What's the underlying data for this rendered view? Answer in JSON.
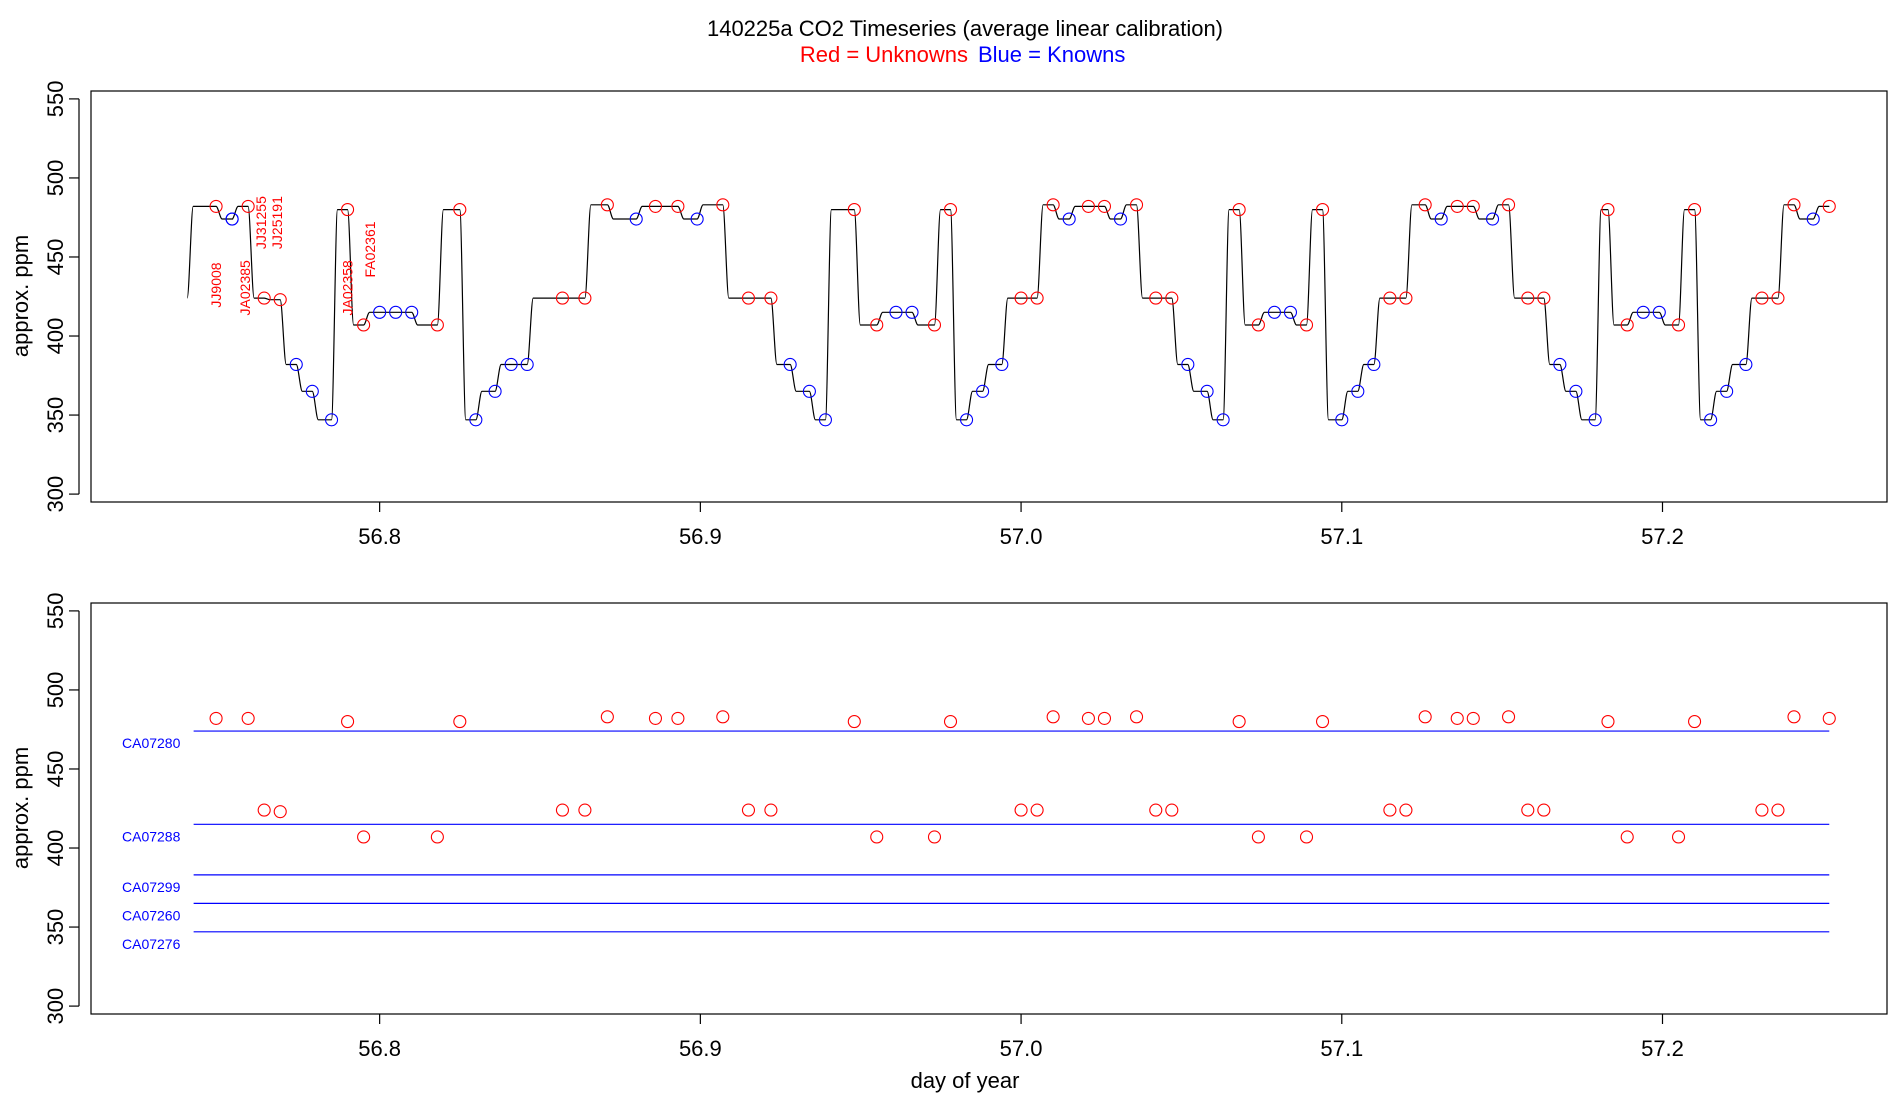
{
  "figure": {
    "title": "140225a   CO2 Timeseries (average linear calibration)",
    "legend_red": "Red = Unknowns",
    "legend_blue": "Blue = Knowns",
    "xlabel": "day of year",
    "colors": {
      "unknown": "#ff0000",
      "known": "#0000ff",
      "trace": "#000000",
      "frame": "#000000"
    }
  },
  "chart_data": [
    {
      "type": "line",
      "panel": "top",
      "ylabel": "approx. ppm",
      "xlim": [
        56.71,
        57.27
      ],
      "ylim": [
        295,
        555
      ],
      "x_ticks": [
        "56.8",
        "56.9",
        "57.0",
        "57.1",
        "57.2"
      ],
      "y_ticks": [
        "300",
        "350",
        "400",
        "450",
        "500",
        "550"
      ],
      "grid": false,
      "series": [
        {
          "name": "Unknowns",
          "color": "#ff0000",
          "points": [
            [
              56.749,
              482
            ],
            [
              56.759,
              482
            ],
            [
              56.764,
              424
            ],
            [
              56.769,
              423
            ],
            [
              56.79,
              480
            ],
            [
              56.795,
              407
            ],
            [
              56.818,
              407
            ],
            [
              56.825,
              480
            ],
            [
              56.857,
              424
            ],
            [
              56.864,
              424
            ],
            [
              56.871,
              483
            ],
            [
              56.886,
              482
            ],
            [
              56.893,
              482
            ],
            [
              56.907,
              483
            ],
            [
              56.915,
              424
            ],
            [
              56.922,
              424
            ],
            [
              56.948,
              480
            ],
            [
              56.955,
              407
            ],
            [
              56.973,
              407
            ],
            [
              56.978,
              480
            ],
            [
              57.0,
              424
            ],
            [
              57.005,
              424
            ],
            [
              57.01,
              483
            ],
            [
              57.021,
              482
            ],
            [
              57.026,
              482
            ],
            [
              57.036,
              483
            ],
            [
              57.042,
              424
            ],
            [
              57.047,
              424
            ],
            [
              57.068,
              480
            ],
            [
              57.074,
              407
            ],
            [
              57.089,
              407
            ],
            [
              57.094,
              480
            ],
            [
              57.115,
              424
            ],
            [
              57.12,
              424
            ],
            [
              57.126,
              483
            ],
            [
              57.136,
              482
            ],
            [
              57.141,
              482
            ],
            [
              57.152,
              483
            ],
            [
              57.158,
              424
            ],
            [
              57.163,
              424
            ],
            [
              57.183,
              480
            ],
            [
              57.189,
              407
            ],
            [
              57.205,
              407
            ],
            [
              57.21,
              480
            ],
            [
              57.231,
              424
            ],
            [
              57.236,
              424
            ],
            [
              57.241,
              483
            ],
            [
              57.252,
              482
            ]
          ]
        },
        {
          "name": "Knowns",
          "color": "#0000ff",
          "points": [
            [
              56.754,
              474
            ],
            [
              56.754,
              474
            ],
            [
              56.774,
              382
            ],
            [
              56.779,
              365
            ],
            [
              56.785,
              347
            ],
            [
              56.8,
              415
            ],
            [
              56.805,
              415
            ],
            [
              56.81,
              415
            ],
            [
              56.83,
              347
            ],
            [
              56.836,
              365
            ],
            [
              56.841,
              382
            ],
            [
              56.846,
              382
            ],
            [
              56.88,
              474
            ],
            [
              56.899,
              474
            ],
            [
              56.928,
              382
            ],
            [
              56.934,
              365
            ],
            [
              56.939,
              347
            ],
            [
              56.961,
              415
            ],
            [
              56.966,
              415
            ],
            [
              56.983,
              347
            ],
            [
              56.988,
              365
            ],
            [
              56.994,
              382
            ],
            [
              57.015,
              474
            ],
            [
              57.031,
              474
            ],
            [
              57.052,
              382
            ],
            [
              57.058,
              365
            ],
            [
              57.063,
              347
            ],
            [
              57.079,
              415
            ],
            [
              57.084,
              415
            ],
            [
              57.1,
              347
            ],
            [
              57.105,
              365
            ],
            [
              57.11,
              382
            ],
            [
              57.131,
              474
            ],
            [
              57.147,
              474
            ],
            [
              57.168,
              382
            ],
            [
              57.173,
              365
            ],
            [
              57.179,
              347
            ],
            [
              57.194,
              415
            ],
            [
              57.199,
              415
            ],
            [
              57.215,
              347
            ],
            [
              57.22,
              365
            ],
            [
              57.226,
              382
            ],
            [
              57.247,
              474
            ]
          ]
        }
      ],
      "trace_start": [
        56.74,
        424
      ],
      "annotations": [
        {
          "text": "JJ9008",
          "x": 56.749,
          "y": 418
        },
        {
          "text": "JA02385",
          "x": 56.758,
          "y": 413
        },
        {
          "text": "JJ31255",
          "x": 56.763,
          "y": 455
        },
        {
          "text": "JJ25191",
          "x": 56.768,
          "y": 455
        },
        {
          "text": "JA02358",
          "x": 56.79,
          "y": 413
        },
        {
          "text": "FA02361",
          "x": 56.797,
          "y": 437
        }
      ]
    },
    {
      "type": "scatter",
      "panel": "bottom",
      "ylabel": "approx. ppm",
      "xlabel": "day of year",
      "xlim": [
        56.71,
        57.27
      ],
      "ylim": [
        295,
        555
      ],
      "x_ticks": [
        "56.8",
        "56.9",
        "57.0",
        "57.1",
        "57.2"
      ],
      "y_ticks": [
        "300",
        "350",
        "400",
        "450",
        "500",
        "550"
      ],
      "grid": false,
      "reference_lines": [
        {
          "label": "CA07280",
          "y": 474
        },
        {
          "label": "CA07288",
          "y": 415
        },
        {
          "label": "CA07299",
          "y": 383
        },
        {
          "label": "CA07260",
          "y": 365
        },
        {
          "label": "CA07276",
          "y": 347
        }
      ],
      "line_x_range": [
        56.742,
        57.252
      ],
      "series": [
        {
          "name": "Unknowns",
          "color": "#ff0000",
          "points": [
            [
              56.749,
              482
            ],
            [
              56.759,
              482
            ],
            [
              56.764,
              424
            ],
            [
              56.769,
              423
            ],
            [
              56.79,
              480
            ],
            [
              56.795,
              407
            ],
            [
              56.818,
              407
            ],
            [
              56.825,
              480
            ],
            [
              56.857,
              424
            ],
            [
              56.864,
              424
            ],
            [
              56.871,
              483
            ],
            [
              56.886,
              482
            ],
            [
              56.893,
              482
            ],
            [
              56.907,
              483
            ],
            [
              56.915,
              424
            ],
            [
              56.922,
              424
            ],
            [
              56.948,
              480
            ],
            [
              56.955,
              407
            ],
            [
              56.973,
              407
            ],
            [
              56.978,
              480
            ],
            [
              57.0,
              424
            ],
            [
              57.005,
              424
            ],
            [
              57.01,
              483
            ],
            [
              57.021,
              482
            ],
            [
              57.026,
              482
            ],
            [
              57.036,
              483
            ],
            [
              57.042,
              424
            ],
            [
              57.047,
              424
            ],
            [
              57.068,
              480
            ],
            [
              57.074,
              407
            ],
            [
              57.089,
              407
            ],
            [
              57.094,
              480
            ],
            [
              57.115,
              424
            ],
            [
              57.12,
              424
            ],
            [
              57.126,
              483
            ],
            [
              57.136,
              482
            ],
            [
              57.141,
              482
            ],
            [
              57.152,
              483
            ],
            [
              57.158,
              424
            ],
            [
              57.163,
              424
            ],
            [
              57.183,
              480
            ],
            [
              57.189,
              407
            ],
            [
              57.205,
              407
            ],
            [
              57.21,
              480
            ],
            [
              57.231,
              424
            ],
            [
              57.236,
              424
            ],
            [
              57.241,
              483
            ],
            [
              57.252,
              482
            ]
          ]
        }
      ]
    }
  ]
}
